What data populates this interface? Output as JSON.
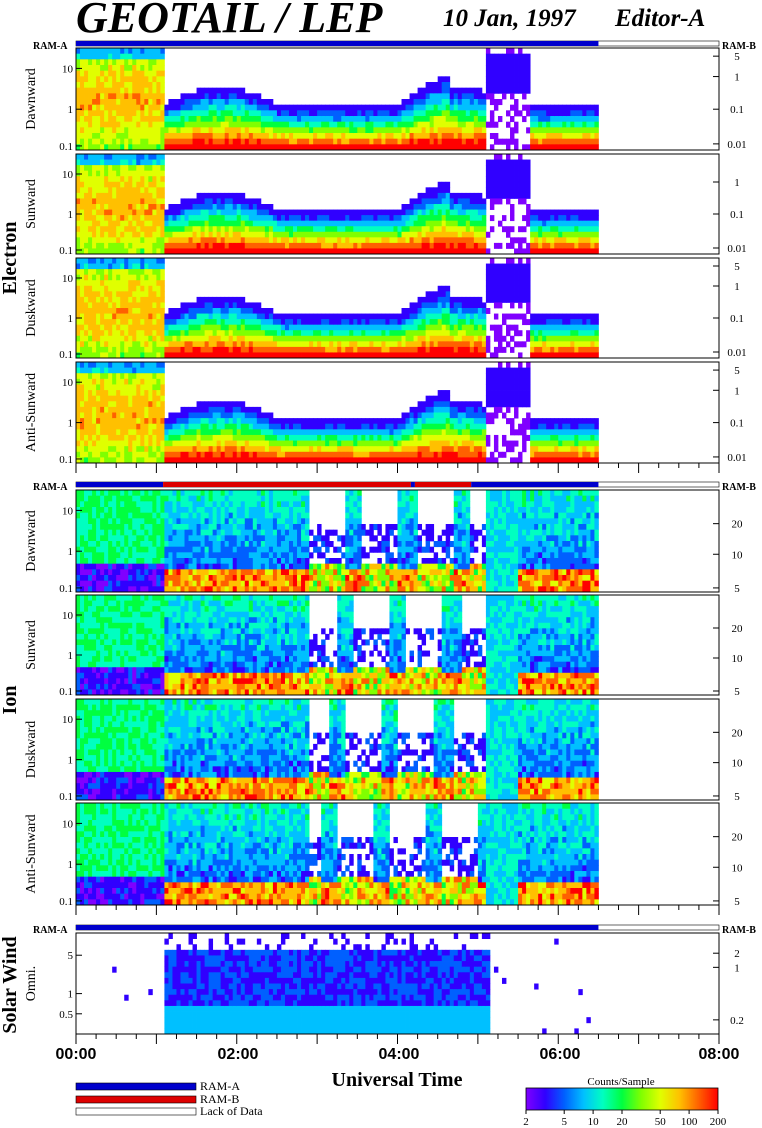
{
  "title": "GEOTAIL / LEP",
  "date": "10 Jan, 1997",
  "editor": "Editor-A",
  "ram_a_label": "RAM-A",
  "ram_b_label": "RAM-B",
  "xlabel": "Universal Time",
  "colors": {
    "ram_a": "#0000cc",
    "ram_b": "#dd0000",
    "lack_of_data": "#ffffff",
    "colorbar": [
      "#8000ff",
      "#3000ff",
      "#0060ff",
      "#00c0ff",
      "#00ffc0",
      "#00ff40",
      "#80ff00",
      "#e0ff00",
      "#ffc000",
      "#ff6000",
      "#ff0000"
    ]
  },
  "legend": {
    "items": [
      {
        "label": "RAM-A",
        "color": "#0000cc"
      },
      {
        "label": "RAM-B",
        "color": "#dd0000"
      },
      {
        "label": "Lack of Data",
        "color": "#ffffff"
      }
    ]
  },
  "colorbar": {
    "title": "Counts/Sample",
    "ticks": [
      "2",
      "5",
      "10",
      "20",
      "50",
      "100",
      "200"
    ],
    "range": [
      2,
      200
    ],
    "scale": "log"
  },
  "chart_data": {
    "type": "heatmap",
    "x_axis": {
      "label": "Universal Time",
      "range": [
        "00:00",
        "08:00"
      ],
      "ticks": [
        "00:00",
        "02:00",
        "04:00",
        "06:00",
        "08:00"
      ],
      "data_end": "06:30"
    },
    "groups": [
      {
        "name": "Electron",
        "ram_bar": [
          {
            "from": "00:00",
            "to": "06:30",
            "mode": "RAM-A"
          }
        ],
        "panels": [
          {
            "label": "Dawnward",
            "left_ticks": [
              "10",
              "1",
              "0.1"
            ],
            "right_ticks": [
              "5",
              "1",
              "0.1",
              "0.01"
            ]
          },
          {
            "label": "Sunward",
            "left_ticks": [
              "10",
              "1",
              "0.1"
            ],
            "right_ticks": [
              "1",
              "0.1",
              "0.01"
            ]
          },
          {
            "label": "Duskward",
            "left_ticks": [
              "10",
              "1",
              "0.1"
            ],
            "right_ticks": [
              "5",
              "1",
              "0.1",
              "0.01"
            ]
          },
          {
            "label": "Anti-Sunward",
            "left_ticks": [
              "10",
              "1",
              "0.1"
            ],
            "right_ticks": [
              "5",
              "1",
              "0.1",
              "0.01"
            ]
          }
        ]
      },
      {
        "name": "Ion",
        "ram_bar": [
          {
            "from": "00:00",
            "to": "01:05",
            "mode": "RAM-A"
          },
          {
            "from": "01:05",
            "to": "04:10",
            "mode": "RAM-B"
          },
          {
            "from": "04:10",
            "to": "04:13",
            "mode": "RAM-A"
          },
          {
            "from": "04:13",
            "to": "04:55",
            "mode": "RAM-B"
          },
          {
            "from": "04:55",
            "to": "06:30",
            "mode": "RAM-A"
          }
        ],
        "panels": [
          {
            "label": "Dawnward",
            "left_ticks": [
              "10",
              "1",
              "0.1"
            ],
            "right_ticks": [
              "20",
              "10",
              "5"
            ]
          },
          {
            "label": "Sunward",
            "left_ticks": [
              "10",
              "1",
              "0.1"
            ],
            "right_ticks": [
              "20",
              "10",
              "5"
            ]
          },
          {
            "label": "Duskward",
            "left_ticks": [
              "10",
              "1",
              "0.1"
            ],
            "right_ticks": [
              "20",
              "10",
              "5"
            ]
          },
          {
            "label": "Anti-Sunward",
            "left_ticks": [
              "10",
              "1",
              "0.1"
            ],
            "right_ticks": [
              "20",
              "10",
              "5"
            ]
          }
        ]
      },
      {
        "name": "Solar Wind",
        "ram_bar": [
          {
            "from": "00:00",
            "to": "06:30",
            "mode": "RAM-A"
          }
        ],
        "panels": [
          {
            "label": "Omni.",
            "left_ticks": [
              "5",
              "1",
              "0.5"
            ],
            "right_ticks": [
              "2",
              "1",
              "0.2"
            ]
          }
        ]
      }
    ]
  }
}
